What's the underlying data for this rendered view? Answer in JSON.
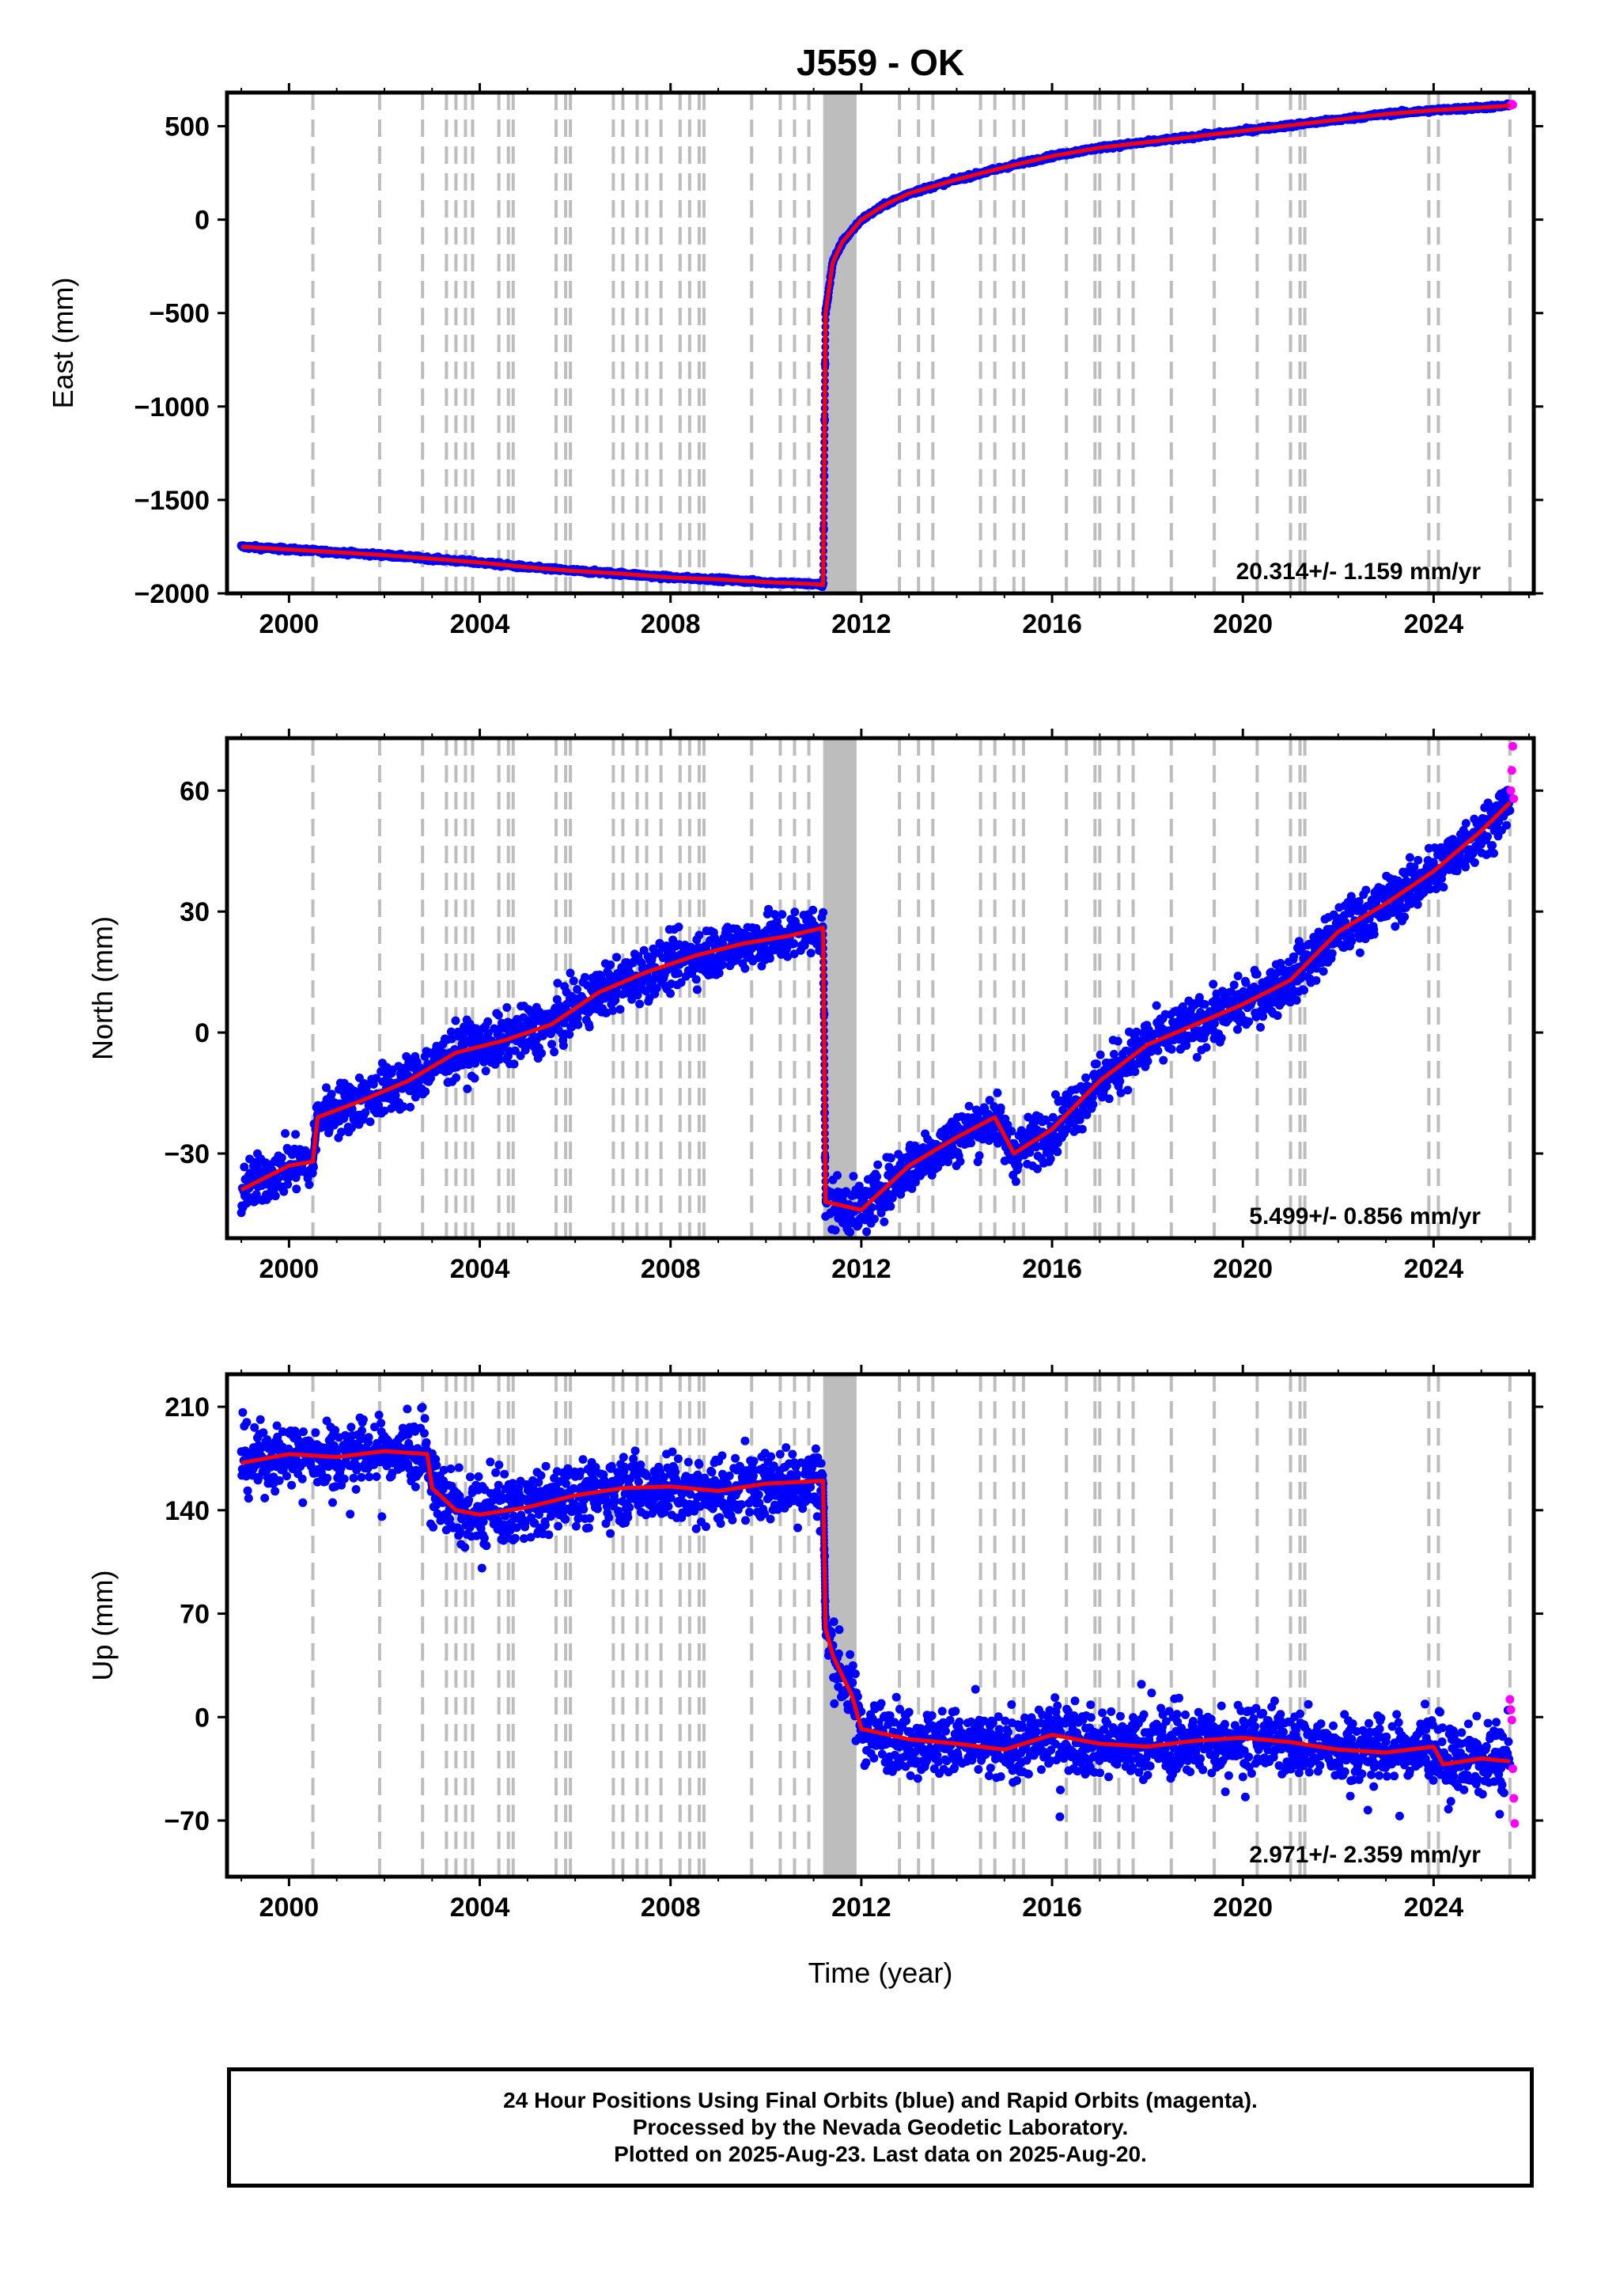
{
  "title": "J559 - OK",
  "xlabel": "Time (year)",
  "caption": {
    "line1": "24 Hour Positions Using Final Orbits (blue) and Rapid Orbits (magenta).",
    "line2": "Processed by the Nevada Geodetic Laboratory.",
    "line3": "Plotted on 2025-Aug-23. Last data on 2025-Aug-20."
  },
  "colors": {
    "final_orbits": "#0000ff",
    "rapid_orbits": "#ff00ff",
    "model_fit": "#ff0000",
    "event_lines": "#bdbdbd"
  },
  "chart_data": [
    {
      "type": "scatter",
      "panel": "east",
      "ylabel": "East (mm)",
      "xlim": [
        1998.7,
        2026.1
      ],
      "ylim": [
        -2000,
        680
      ],
      "x_ticks": [
        2000,
        2004,
        2008,
        2012,
        2016,
        2020,
        2024
      ],
      "y_ticks": [
        500,
        0,
        -500,
        -1000,
        -1500,
        -2000
      ],
      "y_tick_labels": [
        "500",
        "0",
        "−500",
        "−1000",
        "−1500",
        "−2000"
      ],
      "rate_annotation": "20.314+/- 1.159 mm/yr",
      "series": [
        {
          "role": "final",
          "x": [
            1999.0,
            2000.0,
            2001.0,
            2002.0,
            2003.0,
            2004.0,
            2005.0,
            2006.0,
            2007.0,
            2008.0,
            2009.0,
            2010.0,
            2011.0,
            2011.2,
            2011.25,
            2011.4,
            2011.6,
            2012.0,
            2012.5,
            2013.0,
            2014.0,
            2015.0,
            2016.0,
            2017.0,
            2018.0,
            2019.0,
            2020.0,
            2021.0,
            2022.0,
            2023.0,
            2024.0,
            2025.0,
            2025.6
          ],
          "y": [
            -1750,
            -1765,
            -1780,
            -1795,
            -1815,
            -1835,
            -1860,
            -1880,
            -1895,
            -1915,
            -1925,
            -1940,
            -1950,
            -1955,
            -500,
            -230,
            -120,
            0,
            80,
            140,
            215,
            280,
            340,
            385,
            415,
            445,
            475,
            505,
            535,
            565,
            585,
            600,
            610
          ]
        },
        {
          "role": "rapid",
          "x": [
            2025.62,
            2025.64,
            2025.66
          ],
          "y": [
            612,
            618,
            615
          ]
        },
        {
          "role": "model",
          "x": [
            1999.0,
            2000.0,
            2001.0,
            2002.0,
            2003.0,
            2004.0,
            2005.0,
            2006.0,
            2007.0,
            2008.0,
            2009.0,
            2010.0,
            2011.0,
            2011.2,
            2011.25,
            2011.4,
            2011.6,
            2012.0,
            2012.5,
            2013.0,
            2014.0,
            2015.0,
            2016.0,
            2017.0,
            2018.0,
            2019.0,
            2020.0,
            2021.0,
            2022.0,
            2023.0,
            2024.0,
            2025.0,
            2025.6
          ],
          "y": [
            -1750,
            -1765,
            -1780,
            -1795,
            -1815,
            -1835,
            -1860,
            -1880,
            -1895,
            -1915,
            -1925,
            -1940,
            -1950,
            -1955,
            -500,
            -230,
            -120,
            0,
            80,
            140,
            215,
            280,
            340,
            385,
            415,
            445,
            475,
            505,
            535,
            565,
            585,
            600,
            610
          ]
        }
      ]
    },
    {
      "type": "scatter",
      "panel": "north",
      "ylabel": "North (mm)",
      "xlim": [
        1998.7,
        2026.1
      ],
      "ylim": [
        -51,
        73
      ],
      "x_ticks": [
        2000,
        2004,
        2008,
        2012,
        2016,
        2020,
        2024
      ],
      "y_ticks": [
        60,
        30,
        0,
        -30
      ],
      "y_tick_labels": [
        "60",
        "30",
        "0",
        "−30"
      ],
      "rate_annotation": "5.499+/- 0.856 mm/yr",
      "series": [
        {
          "role": "final",
          "x": [
            1999.0,
            2000.0,
            2000.5,
            2000.6,
            2001.5,
            2002.5,
            2003.5,
            2004.5,
            2005.5,
            2006.5,
            2007.5,
            2008.5,
            2009.5,
            2010.5,
            2011.2,
            2011.25,
            2012.0,
            2013.0,
            2014.0,
            2014.8,
            2015.2,
            2016.0,
            2017.0,
            2018.0,
            2019.0,
            2020.0,
            2021.0,
            2022.0,
            2023.0,
            2024.0,
            2025.0,
            2025.6
          ],
          "y": [
            -39,
            -33,
            -32,
            -21,
            -17,
            -12,
            -5,
            -2,
            2,
            10,
            15,
            19,
            22,
            24,
            26,
            -42,
            -44,
            -33,
            -26,
            -21,
            -30,
            -24,
            -12,
            -3,
            2,
            7,
            13,
            25,
            32,
            40,
            50,
            57
          ]
        },
        {
          "role": "rapid",
          "x": [
            2025.62,
            2025.64,
            2025.66,
            2025.68
          ],
          "y": [
            60,
            65,
            71,
            58
          ]
        },
        {
          "role": "model",
          "x": [
            1999.0,
            2000.0,
            2000.5,
            2000.6,
            2001.5,
            2002.5,
            2003.5,
            2004.5,
            2005.5,
            2006.5,
            2007.5,
            2008.5,
            2009.5,
            2010.5,
            2011.2,
            2011.25,
            2012.0,
            2013.0,
            2014.0,
            2014.8,
            2015.2,
            2016.0,
            2017.0,
            2018.0,
            2019.0,
            2020.0,
            2021.0,
            2022.0,
            2023.0,
            2024.0,
            2025.0,
            2025.6
          ],
          "y": [
            -39,
            -33,
            -32,
            -21,
            -17,
            -12,
            -5,
            -2,
            2,
            10,
            15,
            19,
            22,
            24,
            26,
            -42,
            -44,
            -33,
            -26,
            -21,
            -30,
            -24,
            -12,
            -3,
            2,
            7,
            13,
            25,
            32,
            40,
            50,
            57
          ]
        }
      ]
    },
    {
      "type": "scatter",
      "panel": "up",
      "ylabel": "Up (mm)",
      "xlim": [
        1998.7,
        2026.1
      ],
      "ylim": [
        -108,
        232
      ],
      "x_ticks": [
        2000,
        2004,
        2008,
        2012,
        2016,
        2020,
        2024
      ],
      "y_ticks": [
        210,
        140,
        70,
        0,
        -70
      ],
      "y_tick_labels": [
        "210",
        "140",
        "70",
        "0",
        "−70"
      ],
      "rate_annotation": "2.971+/- 2.359 mm/yr",
      "series": [
        {
          "role": "final",
          "x": [
            1999.0,
            2000.0,
            2001.0,
            2002.0,
            2002.9,
            2003.0,
            2003.5,
            2004.0,
            2005.0,
            2006.0,
            2007.0,
            2008.0,
            2009.0,
            2010.0,
            2011.2,
            2011.25,
            2011.4,
            2011.6,
            2011.8,
            2012.0,
            2013.0,
            2014.0,
            2015.0,
            2016.0,
            2017.0,
            2018.0,
            2019.0,
            2020.0,
            2021.0,
            2022.0,
            2023.0,
            2024.0,
            2024.2,
            2025.0,
            2025.6
          ],
          "y": [
            172,
            178,
            176,
            180,
            178,
            155,
            140,
            137,
            142,
            150,
            155,
            156,
            153,
            158,
            160,
            60,
            42,
            28,
            15,
            -8,
            -15,
            -18,
            -22,
            -12,
            -18,
            -20,
            -16,
            -14,
            -17,
            -22,
            -24,
            -20,
            -32,
            -28,
            -30
          ]
        },
        {
          "role": "rapid",
          "x": [
            2025.6,
            2025.62,
            2025.64,
            2025.66,
            2025.68,
            2025.7
          ],
          "y": [
            12,
            5,
            -2,
            -35,
            -55,
            -72
          ]
        },
        {
          "role": "model",
          "x": [
            1999.0,
            2000.0,
            2001.0,
            2002.0,
            2002.9,
            2003.0,
            2003.5,
            2004.0,
            2005.0,
            2006.0,
            2007.0,
            2008.0,
            2009.0,
            2010.0,
            2011.2,
            2011.25,
            2011.4,
            2011.6,
            2011.8,
            2012.0,
            2013.0,
            2014.0,
            2015.0,
            2016.0,
            2017.0,
            2018.0,
            2019.0,
            2020.0,
            2021.0,
            2022.0,
            2023.0,
            2024.0,
            2024.2,
            2025.0,
            2025.6
          ],
          "y": [
            172,
            178,
            176,
            180,
            178,
            155,
            140,
            137,
            142,
            150,
            155,
            156,
            153,
            158,
            160,
            60,
            42,
            28,
            15,
            -8,
            -15,
            -18,
            -22,
            -12,
            -18,
            -20,
            -16,
            -14,
            -17,
            -22,
            -24,
            -20,
            -32,
            -28,
            -30
          ]
        }
      ]
    }
  ],
  "event_lines": [
    2000.5,
    2001.9,
    2002.8,
    2003.3,
    2003.5,
    2003.7,
    2003.85,
    2004.4,
    2004.6,
    2004.7,
    2005.6,
    2005.8,
    2005.9,
    2006.8,
    2007.0,
    2007.3,
    2007.5,
    2007.8,
    2008.2,
    2008.4,
    2008.6,
    2008.7,
    2009.7,
    2010.3,
    2010.6,
    2010.9,
    2012.8,
    2013.2,
    2013.5,
    2014.5,
    2014.8,
    2015.2,
    2015.4,
    2016.3,
    2016.9,
    2017.0,
    2017.4,
    2017.7,
    2018.5,
    2019.4,
    2020.3,
    2021.0,
    2021.2,
    2021.3,
    2023.9,
    2024.1,
    2025.6
  ],
  "event_band": [
    2011.2,
    2011.9
  ]
}
